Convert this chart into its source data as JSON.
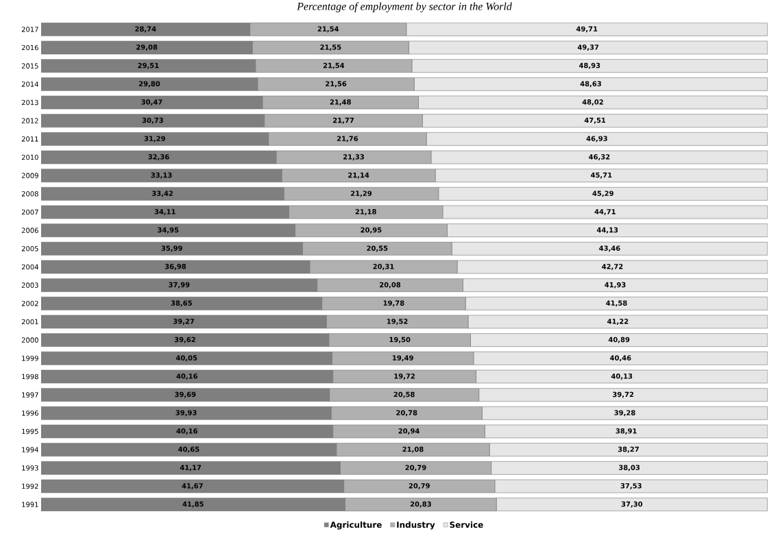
{
  "chart_data": {
    "type": "bar",
    "orientation": "horizontal",
    "stacked": true,
    "title": "Percentage of employment by sector in the World",
    "categories": [
      "2017",
      "2016",
      "2015",
      "2014",
      "2013",
      "2012",
      "2011",
      "2010",
      "2009",
      "2008",
      "2007",
      "2006",
      "2005",
      "2004",
      "2003",
      "2002",
      "2001",
      "2000",
      "1999",
      "1998",
      "1997",
      "1996",
      "1995",
      "1994",
      "1993",
      "1992",
      "1991"
    ],
    "series": [
      {
        "name": "Agriculture",
        "color": "#7f7f7f",
        "values": [
          28.74,
          29.08,
          29.51,
          29.8,
          30.47,
          30.73,
          31.29,
          32.36,
          33.13,
          33.42,
          34.11,
          34.95,
          35.99,
          36.98,
          37.99,
          38.65,
          39.27,
          39.62,
          40.05,
          40.16,
          39.69,
          39.93,
          40.16,
          40.65,
          41.17,
          41.67,
          41.85
        ],
        "value_labels": [
          "28,74",
          "29,08",
          "29,51",
          "29,80",
          "30,47",
          "30,73",
          "31,29",
          "32,36",
          "33,13",
          "33,42",
          "34,11",
          "34,95",
          "35,99",
          "36,98",
          "37,99",
          "38,65",
          "39,27",
          "39,62",
          "40,05",
          "40,16",
          "39,69",
          "39,93",
          "40,16",
          "40,65",
          "41,17",
          "41,67",
          "41,85"
        ]
      },
      {
        "name": "Industry",
        "color": "#b0b0b0",
        "values": [
          21.54,
          21.55,
          21.54,
          21.56,
          21.48,
          21.77,
          21.76,
          21.33,
          21.14,
          21.29,
          21.18,
          20.95,
          20.55,
          20.31,
          20.08,
          19.78,
          19.52,
          19.5,
          19.49,
          19.72,
          20.58,
          20.78,
          20.94,
          21.08,
          20.79,
          20.79,
          20.83
        ],
        "value_labels": [
          "21,54",
          "21,55",
          "21,54",
          "21,56",
          "21,48",
          "21,77",
          "21,76",
          "21,33",
          "21,14",
          "21,29",
          "21,18",
          "20,95",
          "20,55",
          "20,31",
          "20,08",
          "19,78",
          "19,52",
          "19,50",
          "19,49",
          "19,72",
          "20,58",
          "20,78",
          "20,94",
          "21,08",
          "20,79",
          "20,79",
          "20,83"
        ]
      },
      {
        "name": "Service",
        "color": "#e6e6e6",
        "values": [
          49.71,
          49.37,
          48.93,
          48.63,
          48.02,
          47.51,
          46.93,
          46.32,
          45.71,
          45.29,
          44.71,
          44.13,
          43.46,
          42.72,
          41.93,
          41.58,
          41.22,
          40.89,
          40.46,
          40.13,
          39.72,
          39.28,
          38.91,
          38.27,
          38.03,
          37.53,
          37.3
        ],
        "value_labels": [
          "49,71",
          "49,37",
          "48,93",
          "48,63",
          "48,02",
          "47,51",
          "46,93",
          "46,32",
          "45,71",
          "45,29",
          "44,71",
          "44,13",
          "43,46",
          "42,72",
          "41,93",
          "41,58",
          "41,22",
          "40,89",
          "40,46",
          "40,13",
          "39,72",
          "39,28",
          "38,91",
          "38,27",
          "38,03",
          "37,53",
          "37,30"
        ]
      }
    ],
    "legend": "bottom",
    "tick_labels": "y"
  }
}
